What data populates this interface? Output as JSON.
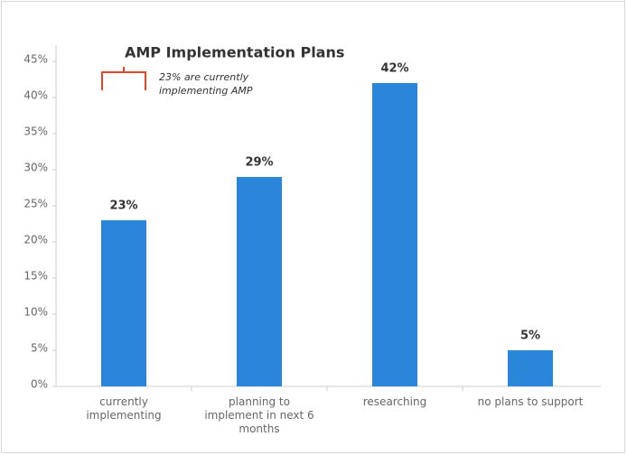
{
  "chart_data": {
    "type": "bar",
    "title": "AMP Implementation Plans",
    "annotation": [
      "23% are currently",
      "implementing AMP"
    ],
    "categories": [
      "currently implementing",
      "planning to implement in next 6 months",
      "researching",
      "no plans to support"
    ],
    "values": [
      23,
      29,
      42,
      5
    ],
    "value_labels": [
      "23%",
      "29%",
      "42%",
      "5%"
    ],
    "color": "#2a86d8",
    "ylim": [
      0,
      45
    ],
    "yticks": [
      {
        "value": 0,
        "label": "0%"
      },
      {
        "value": 5,
        "label": "5%"
      },
      {
        "value": 10,
        "label": "10%"
      },
      {
        "value": 15,
        "label": "15%"
      },
      {
        "value": 20,
        "label": "20%"
      },
      {
        "value": 25,
        "label": "25%"
      },
      {
        "value": 30,
        "label": "30%"
      },
      {
        "value": 35,
        "label": "35%"
      },
      {
        "value": 40,
        "label": "40%"
      },
      {
        "value": 45,
        "label": "45%"
      }
    ],
    "grid": false
  }
}
